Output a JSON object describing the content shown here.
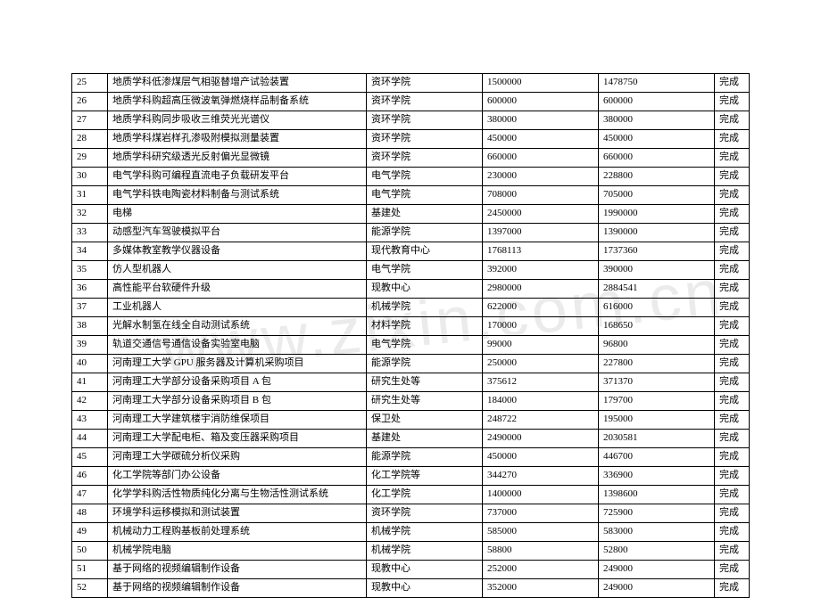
{
  "watermark": "www.zixin.com.cn",
  "table": {
    "columns": {
      "count": 6
    },
    "rows": [
      {
        "no": "25",
        "name": "地质学科低渗煤层气相驱替增产试验装置",
        "dept": "资环学院",
        "budget": "1500000",
        "actual": "1478750",
        "status": "完成"
      },
      {
        "no": "26",
        "name": "地质学科购超高压微波氧弹燃烧样品制备系统",
        "dept": "资环学院",
        "budget": "600000",
        "actual": "600000",
        "status": "完成"
      },
      {
        "no": "27",
        "name": "地质学科购同步吸收三维荧光光谱仪",
        "dept": "资环学院",
        "budget": "380000",
        "actual": "380000",
        "status": "完成"
      },
      {
        "no": "28",
        "name": "地质学科煤岩样孔渗吸附模拟测量装置",
        "dept": "资环学院",
        "budget": "450000",
        "actual": "450000",
        "status": "完成"
      },
      {
        "no": "29",
        "name": "地质学科研究级透光反射偏光显微镜",
        "dept": "资环学院",
        "budget": "660000",
        "actual": "660000",
        "status": "完成"
      },
      {
        "no": "30",
        "name": "电气学科购可编程直流电子负载研发平台",
        "dept": "电气学院",
        "budget": "230000",
        "actual": "228800",
        "status": "完成"
      },
      {
        "no": "31",
        "name": "电气学科铁电陶瓷材料制备与测试系统",
        "dept": "电气学院",
        "budget": "708000",
        "actual": "705000",
        "status": "完成"
      },
      {
        "no": "32",
        "name": "电梯",
        "dept": "基建处",
        "budget": "2450000",
        "actual": "1990000",
        "status": "完成"
      },
      {
        "no": "33",
        "name": "动感型汽车驾驶模拟平台",
        "dept": "能源学院",
        "budget": "1397000",
        "actual": "1390000",
        "status": "完成"
      },
      {
        "no": "34",
        "name": "多媒体教室教学仪器设备",
        "dept": "现代教育中心",
        "budget": "1768113",
        "actual": "1737360",
        "status": "完成"
      },
      {
        "no": "35",
        "name": "仿人型机器人",
        "dept": "电气学院",
        "budget": "392000",
        "actual": "390000",
        "status": "完成"
      },
      {
        "no": "36",
        "name": "高性能平台软硬件升级",
        "dept": "现教中心",
        "budget": "2980000",
        "actual": "2884541",
        "status": "完成"
      },
      {
        "no": "37",
        "name": "工业机器人",
        "dept": "机械学院",
        "budget": "622000",
        "actual": "616000",
        "status": "完成"
      },
      {
        "no": "38",
        "name": "光解水制氢在线全自动测试系统",
        "dept": "材料学院",
        "budget": "170000",
        "actual": "168650",
        "status": "完成"
      },
      {
        "no": "39",
        "name": "轨道交通信号通信设备实验室电脑",
        "dept": "电气学院",
        "budget": "99000",
        "actual": "96800",
        "status": "完成"
      },
      {
        "no": "40",
        "name": "河南理工大学 GPU 服务器及计算机采购项目",
        "dept": "能源学院",
        "budget": "250000",
        "actual": "227800",
        "status": "完成"
      },
      {
        "no": "41",
        "name": "河南理工大学部分设备采购项目 A 包",
        "dept": "研究生处等",
        "budget": "375612",
        "actual": "371370",
        "status": "完成"
      },
      {
        "no": "42",
        "name": "河南理工大学部分设备采购项目 B 包",
        "dept": "研究生处等",
        "budget": "184000",
        "actual": "179700",
        "status": "完成"
      },
      {
        "no": "43",
        "name": "河南理工大学建筑楼宇消防维保项目",
        "dept": "保卫处",
        "budget": "248722",
        "actual": "195000",
        "status": "完成"
      },
      {
        "no": "44",
        "name": "河南理工大学配电柜、箱及变压器采购项目",
        "dept": "基建处",
        "budget": "2490000",
        "actual": "2030581",
        "status": "完成"
      },
      {
        "no": "45",
        "name": "河南理工大学碳硫分析仪采购",
        "dept": "能源学院",
        "budget": "450000",
        "actual": "446700",
        "status": "完成"
      },
      {
        "no": "46",
        "name": "化工学院等部门办公设备",
        "dept": "化工学院等",
        "budget": "344270",
        "actual": "336900",
        "status": "完成"
      },
      {
        "no": "47",
        "name": "化学学科购活性物质纯化分离与生物活性测试系统",
        "dept": "化工学院",
        "budget": "1400000",
        "actual": "1398600",
        "status": "完成"
      },
      {
        "no": "48",
        "name": "环境学科运移模拟和测试装置",
        "dept": "资环学院",
        "budget": "737000",
        "actual": "725900",
        "status": "完成"
      },
      {
        "no": "49",
        "name": "机械动力工程购基板前处理系统",
        "dept": "机械学院",
        "budget": "585000",
        "actual": "583000",
        "status": "完成"
      },
      {
        "no": "50",
        "name": "机械学院电脑",
        "dept": "机械学院",
        "budget": "58800",
        "actual": "52800",
        "status": "完成"
      },
      {
        "no": "51",
        "name": "基于网络的视频编辑制作设备",
        "dept": "现教中心",
        "budget": "252000",
        "actual": "249000",
        "status": "完成"
      },
      {
        "no": "52",
        "name": "基于网络的视频编辑制作设备",
        "dept": "现教中心",
        "budget": "352000",
        "actual": "249000",
        "status": "完成"
      }
    ]
  },
  "style": {
    "font_family": "SimSun",
    "font_size_pt": 11,
    "border_color": "#000000",
    "background_color": "#ffffff",
    "text_color": "#000000",
    "watermark_color": "rgba(0,0,0,0.08)"
  }
}
